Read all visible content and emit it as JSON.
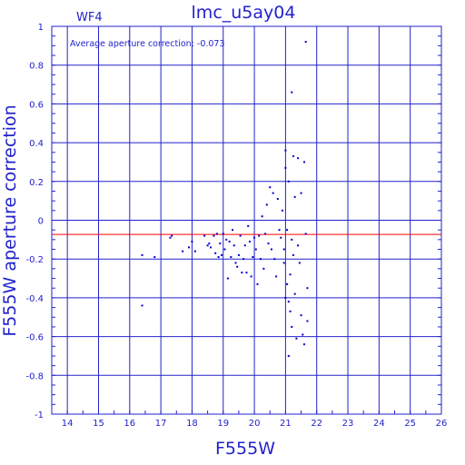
{
  "chart_data": {
    "type": "scatter",
    "title": "lmc_u5ay04",
    "panel_label": "WF4",
    "annotation": "Average aperture correction: -0.073",
    "xlabel": "F555W",
    "ylabel": "F555W aperture correction",
    "xlim": [
      13.5,
      26
    ],
    "ylim": [
      -1,
      1
    ],
    "x_ticks": [
      14,
      15,
      16,
      17,
      18,
      19,
      20,
      21,
      22,
      23,
      24,
      25,
      26
    ],
    "y_ticks": [
      -1,
      -0.8,
      -0.6,
      -0.4,
      -0.2,
      0,
      0.2,
      0.4,
      0.6,
      0.8,
      1
    ],
    "grid": true,
    "reference_lines": [
      {
        "y": 0,
        "color": "#2222cc"
      },
      {
        "y": -0.073,
        "color": "#ff0000"
      }
    ],
    "point_color": "#0000cc",
    "points": [
      [
        16.4,
        -0.18
      ],
      [
        16.4,
        -0.44
      ],
      [
        16.8,
        -0.19
      ],
      [
        17.3,
        -0.09
      ],
      [
        17.35,
        -0.08
      ],
      [
        17.7,
        -0.16
      ],
      [
        17.9,
        -0.14
      ],
      [
        18.0,
        -0.11
      ],
      [
        18.1,
        -0.16
      ],
      [
        18.4,
        -0.08
      ],
      [
        18.5,
        -0.13
      ],
      [
        18.55,
        -0.12
      ],
      [
        18.6,
        -0.14
      ],
      [
        18.7,
        -0.08
      ],
      [
        18.75,
        -0.17
      ],
      [
        18.8,
        -0.07
      ],
      [
        18.85,
        -0.19
      ],
      [
        18.9,
        -0.12
      ],
      [
        18.95,
        -0.18
      ],
      [
        19.0,
        -0.07
      ],
      [
        19.05,
        -0.15
      ],
      [
        19.1,
        -0.1
      ],
      [
        19.15,
        -0.3
      ],
      [
        19.2,
        -0.11
      ],
      [
        19.25,
        -0.19
      ],
      [
        19.3,
        -0.05
      ],
      [
        19.35,
        -0.13
      ],
      [
        19.4,
        -0.22
      ],
      [
        19.45,
        -0.24
      ],
      [
        19.5,
        -0.18
      ],
      [
        19.55,
        -0.08
      ],
      [
        19.6,
        -0.27
      ],
      [
        19.65,
        -0.2
      ],
      [
        19.7,
        -0.13
      ],
      [
        19.75,
        -0.27
      ],
      [
        19.8,
        -0.03
      ],
      [
        19.85,
        -0.11
      ],
      [
        19.9,
        -0.29
      ],
      [
        19.95,
        -0.19
      ],
      [
        20.0,
        -0.09
      ],
      [
        20.05,
        -0.15
      ],
      [
        20.1,
        -0.33
      ],
      [
        20.15,
        -0.08
      ],
      [
        20.2,
        -0.2
      ],
      [
        20.25,
        0.02
      ],
      [
        20.3,
        -0.25
      ],
      [
        20.35,
        -0.07
      ],
      [
        20.4,
        0.08
      ],
      [
        20.45,
        -0.12
      ],
      [
        20.5,
        0.17
      ],
      [
        20.55,
        -0.15
      ],
      [
        20.6,
        0.14
      ],
      [
        20.65,
        -0.2
      ],
      [
        20.7,
        -0.29
      ],
      [
        20.75,
        0.11
      ],
      [
        20.8,
        -0.05
      ],
      [
        20.85,
        -0.09
      ],
      [
        20.9,
        0.05
      ],
      [
        20.95,
        -0.22
      ],
      [
        21.0,
        0.36
      ],
      [
        21.0,
        0.27
      ],
      [
        21.0,
        -0.4
      ],
      [
        21.05,
        -0.05
      ],
      [
        21.05,
        -0.33
      ],
      [
        21.1,
        0.2
      ],
      [
        21.1,
        -0.42
      ],
      [
        21.15,
        -0.28
      ],
      [
        21.15,
        -0.47
      ],
      [
        21.2,
        0.66
      ],
      [
        21.2,
        -0.1
      ],
      [
        21.2,
        -0.55
      ],
      [
        21.25,
        0.33
      ],
      [
        21.25,
        -0.18
      ],
      [
        21.3,
        0.12
      ],
      [
        21.3,
        -0.38
      ],
      [
        21.35,
        -0.61
      ],
      [
        21.4,
        0.32
      ],
      [
        21.4,
        -0.13
      ],
      [
        21.45,
        -0.22
      ],
      [
        21.5,
        0.14
      ],
      [
        21.5,
        -0.49
      ],
      [
        21.55,
        -0.59
      ],
      [
        21.6,
        0.3
      ],
      [
        21.6,
        -0.64
      ],
      [
        21.65,
        0.92
      ],
      [
        21.65,
        -0.07
      ],
      [
        21.7,
        -0.35
      ],
      [
        21.7,
        -0.52
      ],
      [
        21.1,
        -0.7
      ],
      [
        20.95,
        -0.15
      ]
    ]
  }
}
